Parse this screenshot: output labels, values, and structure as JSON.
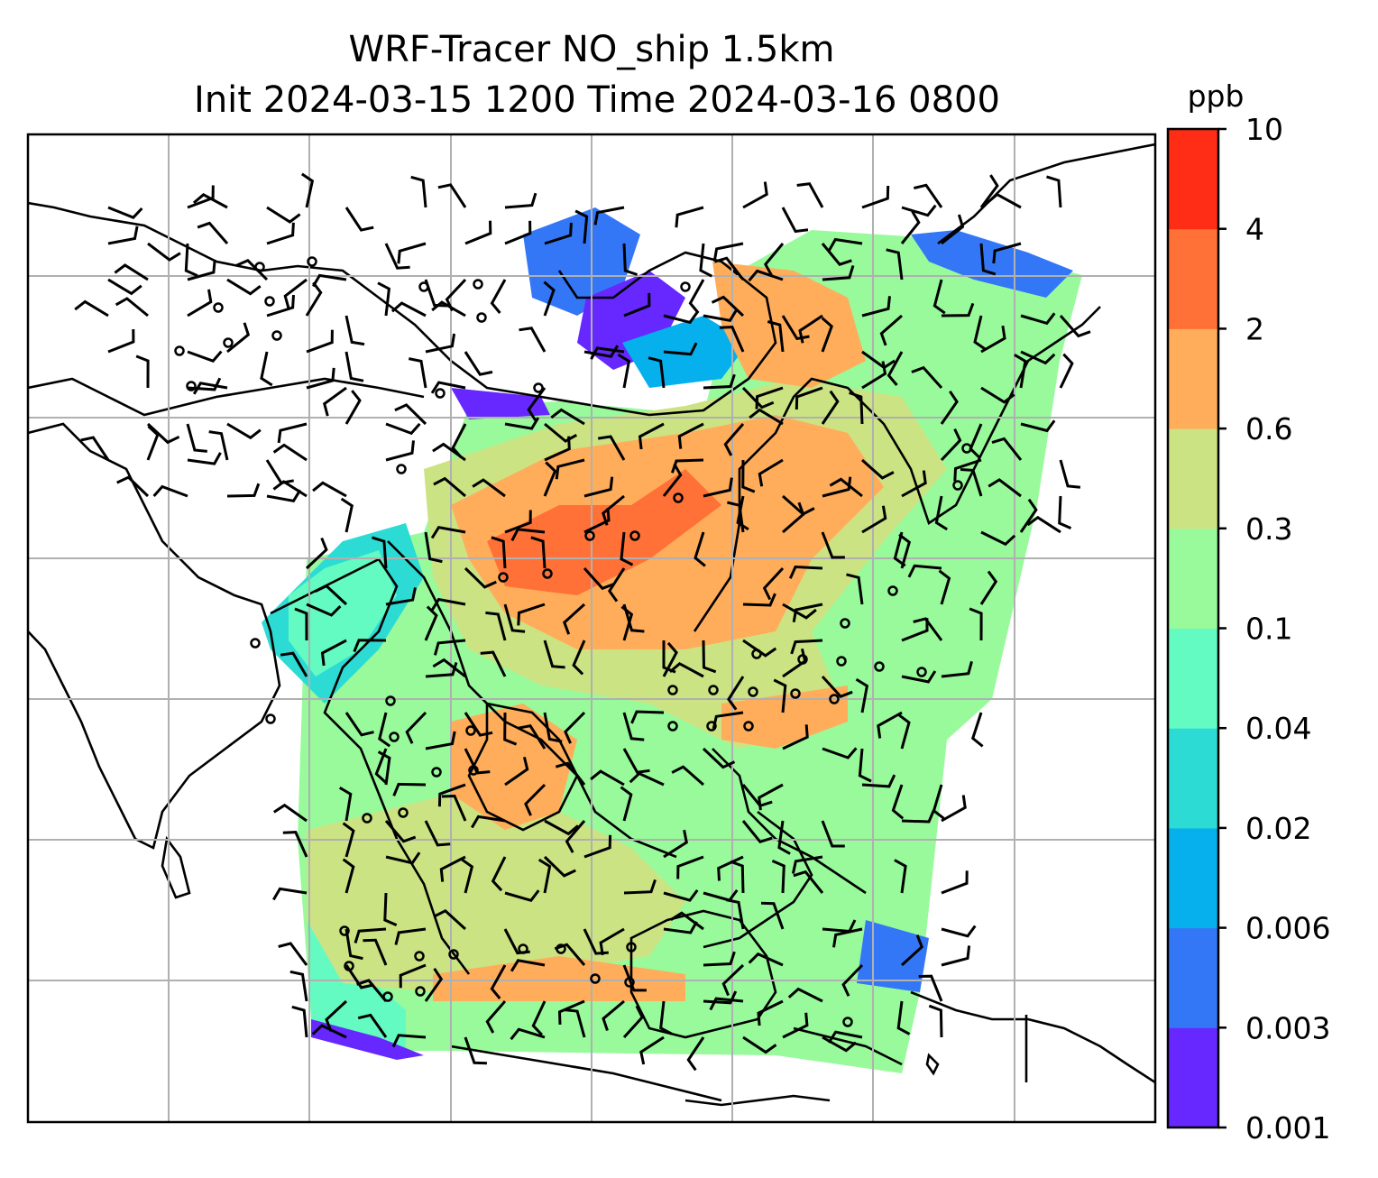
{
  "title_line1": "WRF-Tracer NO_ship 1.5km",
  "title_line2": "Init 2024-03-15 1200 Time 2024-03-16 0800",
  "colorbar": {
    "label": "ppb",
    "ticks": [
      "0.001",
      "0.003",
      "0.006",
      "0.02",
      "0.04",
      "0.1",
      "0.3",
      "0.6",
      "2",
      "4",
      "10"
    ],
    "colors": [
      "#6628ff",
      "#3377f6",
      "#06b0ec",
      "#2cdcd4",
      "#63fbc2",
      "#98fa9b",
      "#cce383",
      "#ffad5b",
      "#ff7136",
      "#ff2c16"
    ]
  },
  "map": {
    "field_name": "NO_ship",
    "level": "1.5km",
    "units": "ppb",
    "gridlines": true
  }
}
